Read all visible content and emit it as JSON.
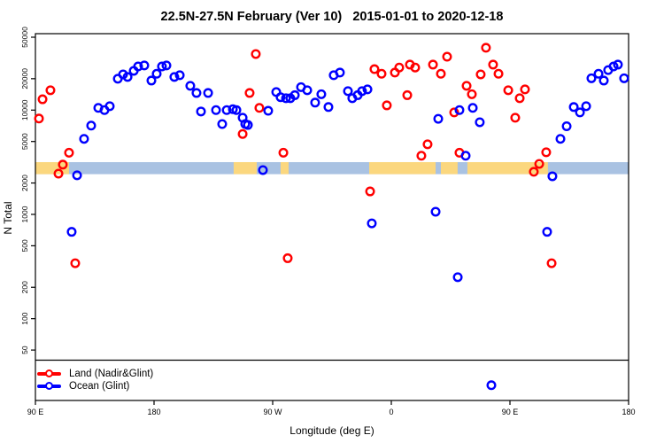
{
  "title": "22.5N-27.5N February (Ver 10)   2015-01-01 to 2020-12-18",
  "colors": {
    "land": "#ff0000",
    "ocean": "#0000ff",
    "band_land": "#fbd77e",
    "band_ocean": "#a9c2e2",
    "axis": "#000000"
  },
  "legend": {
    "items": [
      {
        "label": "Land (Nadir&Glint)",
        "color": "#ff0000"
      },
      {
        "label": "Ocean (Glint)",
        "color": "#0000ff"
      }
    ]
  },
  "chart_data": {
    "type": "scatter",
    "title": "22.5N-27.5N February (Ver 10)   2015-01-01 to 2020-12-18",
    "xlabel": "Longitude (deg E)",
    "ylabel": "N Total",
    "x_axis": {
      "note": "axis runs 450 deg eastward starting at 90E; offsets are degrees east of 90E",
      "range_offset_deg": [
        0,
        450
      ],
      "ticks_offset_deg": [
        0,
        90,
        180,
        270,
        360,
        450
      ],
      "tick_labels": [
        "90 E",
        "180",
        "90 W",
        "0",
        "90 E",
        "180"
      ]
    },
    "y_axis": {
      "scale": "log",
      "range": [
        16,
        54000
      ],
      "ticks": [
        50,
        100,
        200,
        500,
        1000,
        2000,
        5000,
        10000,
        20000,
        50000
      ]
    },
    "grid": false,
    "legend_position": "bottom-left",
    "threshold_line_n": 40,
    "land_ocean_band": {
      "n_range": [
        2430,
        3170
      ],
      "land_segments_offset_deg": [
        [
          0,
          25.5
        ],
        [
          150.4,
          167.9
        ],
        [
          186.0,
          192.1
        ],
        [
          253.2,
          303.6
        ],
        [
          307.6,
          320.3
        ],
        [
          327.7,
          388.8
        ]
      ]
    },
    "series": [
      {
        "name": "Land (Nadir&Glint)",
        "color": "#ff0000",
        "points": [
          [
            2.7,
            8300
          ],
          [
            5.4,
            12700
          ],
          [
            11.4,
            15500
          ],
          [
            17.5,
            2460
          ],
          [
            20.8,
            3000
          ],
          [
            25.5,
            3900
          ],
          [
            30.2,
            340
          ],
          [
            157.2,
            5900
          ],
          [
            162.5,
            14600
          ],
          [
            167.2,
            34500
          ],
          [
            169.9,
            10500
          ],
          [
            188.1,
            3900
          ],
          [
            191.4,
            380
          ],
          [
            253.9,
            1660
          ],
          [
            257.2,
            24700
          ],
          [
            262.6,
            22300
          ],
          [
            266.6,
            11100
          ],
          [
            272.7,
            22900
          ],
          [
            276.0,
            25600
          ],
          [
            282.1,
            13900
          ],
          [
            284.1,
            27300
          ],
          [
            288.1,
            25600
          ],
          [
            292.8,
            3650
          ],
          [
            297.5,
            4700
          ],
          [
            301.6,
            27300
          ],
          [
            307.6,
            22300
          ],
          [
            312.3,
            32500
          ],
          [
            317.7,
            9500
          ],
          [
            321.7,
            3900
          ],
          [
            327.1,
            17100
          ],
          [
            331.1,
            14200
          ],
          [
            337.8,
            22000
          ],
          [
            341.8,
            39600
          ],
          [
            347.2,
            27300
          ],
          [
            351.3,
            22300
          ],
          [
            358.7,
            15500
          ],
          [
            364.0,
            8450
          ],
          [
            367.4,
            13000
          ],
          [
            371.4,
            15800
          ],
          [
            378.1,
            2560
          ],
          [
            382.2,
            3050
          ],
          [
            387.5,
            3940
          ],
          [
            391.6,
            340
          ]
        ]
      },
      {
        "name": "Ocean (Glint)",
        "color": "#0000ff",
        "points": [
          [
            27.5,
            680
          ],
          [
            31.6,
            2370
          ],
          [
            36.9,
            5300
          ],
          [
            42.3,
            7100
          ],
          [
            47.7,
            10500
          ],
          [
            52.4,
            10000
          ],
          [
            56.4,
            10900
          ],
          [
            62.5,
            20000
          ],
          [
            66.5,
            22000
          ],
          [
            69.9,
            20800
          ],
          [
            74.6,
            23800
          ],
          [
            77.9,
            26200
          ],
          [
            82.6,
            26800
          ],
          [
            88.0,
            19200
          ],
          [
            92.0,
            22300
          ],
          [
            96.0,
            26200
          ],
          [
            99.4,
            26800
          ],
          [
            105.4,
            20800
          ],
          [
            109.5,
            21600
          ],
          [
            117.5,
            17100
          ],
          [
            122.2,
            14600
          ],
          [
            125.6,
            9700
          ],
          [
            131.0,
            14600
          ],
          [
            137.0,
            10000
          ],
          [
            141.7,
            7350
          ],
          [
            145.1,
            10000
          ],
          [
            149.8,
            10200
          ],
          [
            152.5,
            10000
          ],
          [
            157.2,
            8450
          ],
          [
            159.2,
            7350
          ],
          [
            161.2,
            7200
          ],
          [
            172.6,
            2660
          ],
          [
            176.6,
            9850
          ],
          [
            182.7,
            14900
          ],
          [
            186.0,
            13300
          ],
          [
            190.1,
            13000
          ],
          [
            193.4,
            13000
          ],
          [
            196.8,
            13900
          ],
          [
            201.5,
            16600
          ],
          [
            206.2,
            15500
          ],
          [
            212.2,
            11800
          ],
          [
            216.9,
            14200
          ],
          [
            222.3,
            10700
          ],
          [
            226.3,
            21600
          ],
          [
            231.0,
            22900
          ],
          [
            237.1,
            15200
          ],
          [
            240.4,
            13000
          ],
          [
            244.5,
            13900
          ],
          [
            247.8,
            15200
          ],
          [
            251.9,
            15800
          ],
          [
            255.2,
            820
          ],
          [
            303.6,
            1060
          ],
          [
            305.6,
            8250
          ],
          [
            320.4,
            250
          ],
          [
            321.7,
            10000
          ],
          [
            326.4,
            3650
          ],
          [
            331.8,
            10500
          ],
          [
            337.1,
            7650
          ],
          [
            345.9,
            23
          ],
          [
            388.2,
            680
          ],
          [
            392.2,
            2320
          ],
          [
            398.3,
            5300
          ],
          [
            403.0,
            7000
          ],
          [
            408.4,
            10700
          ],
          [
            413.1,
            9500
          ],
          [
            417.8,
            10900
          ],
          [
            421.8,
            20200
          ],
          [
            427.2,
            22300
          ],
          [
            431.2,
            19200
          ],
          [
            434.5,
            24200
          ],
          [
            438.6,
            26200
          ],
          [
            441.9,
            27300
          ],
          [
            446.6,
            20200
          ]
        ]
      }
    ]
  }
}
